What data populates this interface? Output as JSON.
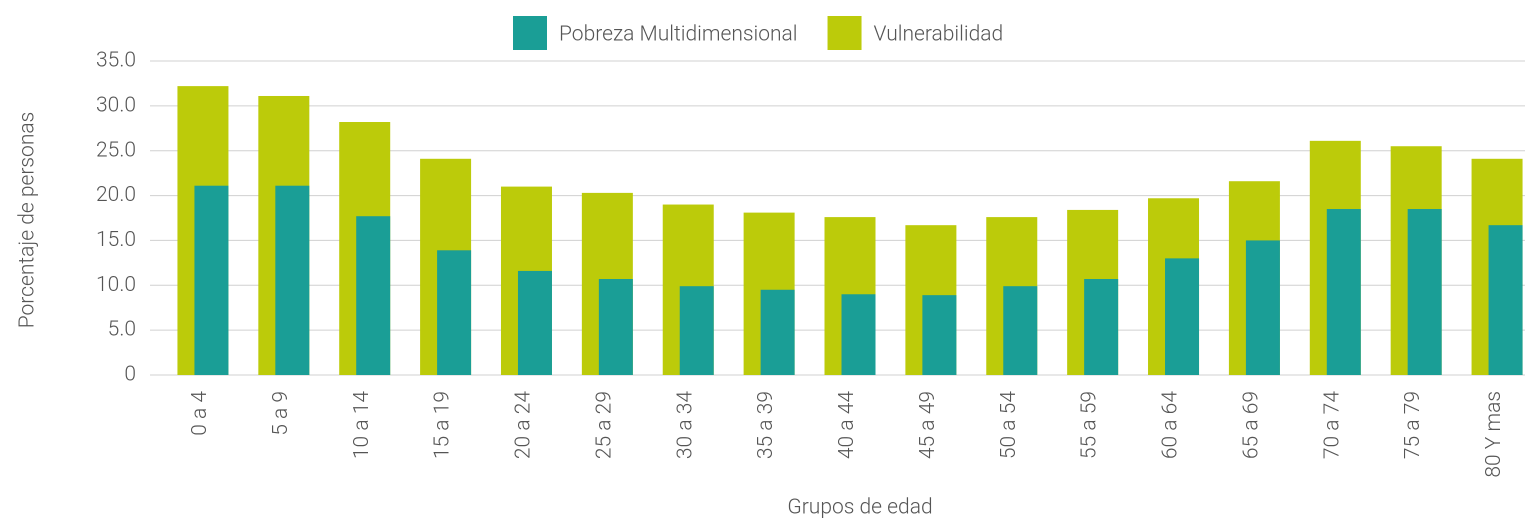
{
  "chart_data": {
    "type": "bar",
    "overlap": true,
    "xlabel": "Grupos de edad",
    "ylabel": "Porcentaje de personas",
    "categories": [
      "0 a 4",
      "5 a 9",
      "10 a 14",
      "15 a 19",
      "20 a 24",
      "25 a 29",
      "30 a 34",
      "35 a 39",
      "40 a 44",
      "45 a 49",
      "50 a 54",
      "55 a 59",
      "60 a 64",
      "65 a 69",
      "70 a 74",
      "75 a 79",
      "80 Y mas"
    ],
    "series": [
      {
        "name": "Vulnerabilidad",
        "color": "#bccb0a",
        "values": [
          32.2,
          31.1,
          28.2,
          24.1,
          21.0,
          20.3,
          19.0,
          18.1,
          17.6,
          16.7,
          17.6,
          18.4,
          19.7,
          21.6,
          26.1,
          25.5,
          24.1
        ]
      },
      {
        "name": "Pobreza Multidimensional",
        "color": "#1a9e96",
        "values": [
          21.1,
          21.1,
          17.7,
          13.9,
          11.6,
          10.7,
          9.9,
          9.5,
          9.0,
          8.9,
          9.9,
          10.7,
          13.0,
          15.0,
          18.5,
          18.5,
          16.7
        ]
      }
    ],
    "legend_order": [
      1,
      0
    ],
    "ylim": [
      0,
      35
    ],
    "yticks": [
      0,
      {
        "value": 5,
        "label": "5.0"
      },
      {
        "value": 10,
        "label": "10.0"
      },
      {
        "value": 15,
        "label": "15.0"
      },
      {
        "value": 20,
        "label": "20.0"
      },
      {
        "value": 25,
        "label": "25.0"
      },
      {
        "value": 30,
        "label": "30.0"
      },
      {
        "value": 35,
        "label": "35.0"
      }
    ],
    "grid": true
  }
}
